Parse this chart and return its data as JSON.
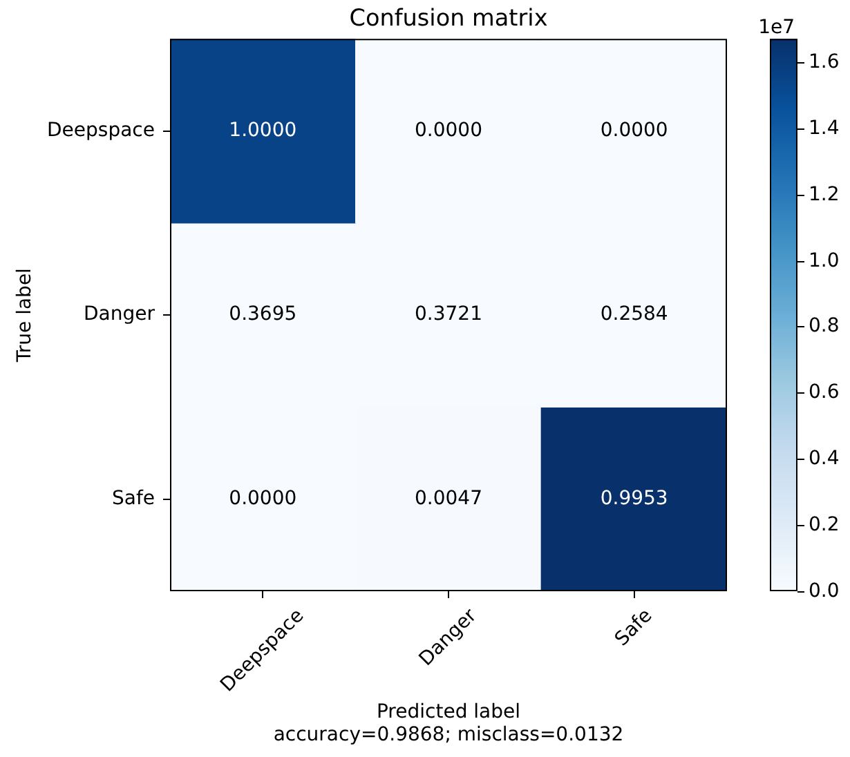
{
  "chart_data": {
    "type": "heatmap",
    "title": "Confusion matrix",
    "xlabel": "Predicted label\naccuracy=0.9868; misclass=0.0132",
    "ylabel": "True label",
    "categories": [
      "Deepspace",
      "Danger",
      "Safe"
    ],
    "y_categories": [
      "Deepspace",
      "Danger",
      "Safe"
    ],
    "cells": [
      [
        1.55,
        0,
        0
      ],
      [
        0,
        0,
        0
      ],
      [
        0,
        0.01,
        1.67
      ]
    ],
    "clim": [
      0,
      1.67
    ],
    "cticks": [
      {
        "value": 0,
        "label": "0.0"
      },
      0.2,
      0.4,
      0.6,
      0.8,
      {
        "value": 1,
        "label": "1.0"
      },
      1.2,
      1.4,
      1.6
    ],
    "annotations": [
      "1.0000",
      "0.0000",
      "0.0000",
      "0.3695",
      "0.3721",
      "0.2584",
      "0.0000",
      "0.0047",
      "0.9953",
      "1e7"
    ]
  }
}
